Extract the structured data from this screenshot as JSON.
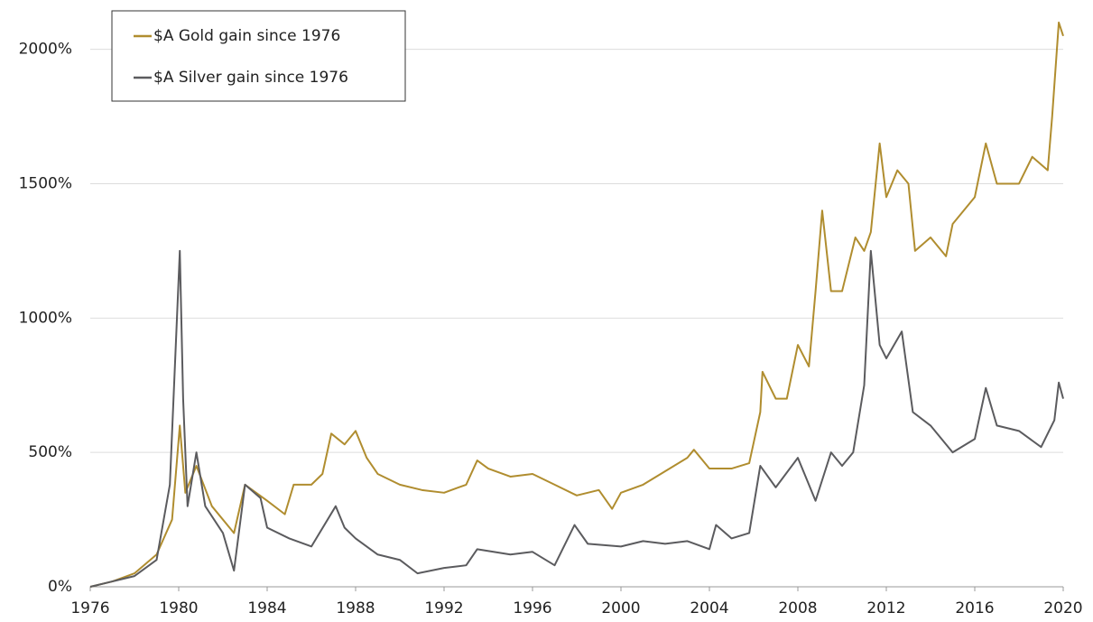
{
  "chart_data": {
    "type": "line",
    "xlim": [
      1976,
      2020
    ],
    "xticks": [
      1976,
      1980,
      1984,
      1988,
      1992,
      1996,
      2000,
      2004,
      2008,
      2012,
      2016,
      2020
    ],
    "ylim": [
      0,
      2150
    ],
    "yticks": [
      {
        "value": 0,
        "label": "0%"
      },
      {
        "value": 500,
        "label": "500%"
      },
      {
        "value": 1000,
        "label": "1000%"
      },
      {
        "value": 1500,
        "label": "1500%"
      },
      {
        "value": 2000,
        "label": "2000%"
      }
    ],
    "grid": true,
    "legend": "upper left",
    "series": [
      {
        "name": "$A Gold gain since 1976",
        "color": "#b08d2f",
        "x": [
          1976,
          1977,
          1978,
          1979,
          1979.7,
          1980.05,
          1980.3,
          1980.8,
          1981.5,
          1982.5,
          1983,
          1983.5,
          1984,
          1984.8,
          1985.2,
          1986,
          1986.5,
          1986.9,
          1987.5,
          1988,
          1988.5,
          1989,
          1990,
          1991,
          1992,
          1993,
          1993.5,
          1994,
          1995,
          1996,
          1997,
          1998,
          1999,
          1999.6,
          2000,
          2001,
          2002,
          2003,
          2003.3,
          2004,
          2005,
          2005.8,
          2006.3,
          2006.4,
          2007,
          2007.5,
          2008,
          2008.5,
          2008.8,
          2009.1,
          2009.5,
          2010,
          2010.6,
          2011,
          2011.3,
          2011.7,
          2012,
          2012.5,
          2013,
          2013.3,
          2014,
          2014.7,
          2015,
          2016,
          2016.5,
          2017,
          2018,
          2018.6,
          2019.3,
          2019.5,
          2019.8,
          2020
        ],
        "values": [
          0,
          20,
          50,
          120,
          250,
          600,
          350,
          450,
          300,
          200,
          380,
          350,
          320,
          270,
          380,
          380,
          420,
          570,
          530,
          580,
          480,
          420,
          380,
          360,
          350,
          380,
          470,
          440,
          410,
          420,
          380,
          340,
          360,
          290,
          350,
          380,
          430,
          480,
          510,
          440,
          440,
          460,
          650,
          800,
          700,
          700,
          900,
          820,
          1100,
          1400,
          1100,
          1100,
          1300,
          1250,
          1320,
          1650,
          1450,
          1550,
          1500,
          1250,
          1300,
          1230,
          1350,
          1450,
          1650,
          1500,
          1500,
          1600,
          1550,
          1750,
          2100,
          2050
        ]
      },
      {
        "name": "$A Silver gain since 1976",
        "color": "#5b5b5e",
        "x": [
          1976,
          1977,
          1978,
          1979,
          1979.6,
          1980.05,
          1980.2,
          1980.4,
          1980.8,
          1981.2,
          1982,
          1982.5,
          1983,
          1983.7,
          1984,
          1985,
          1986,
          1987.1,
          1987.5,
          1988,
          1989,
          1990,
          1990.8,
          1992,
          1993,
          1993.5,
          1995,
          1996,
          1997,
          1997.9,
          1998.5,
          2000,
          2001,
          2002,
          2003,
          2004,
          2004.3,
          2005,
          2005.8,
          2006.3,
          2007,
          2008,
          2008.8,
          2009.5,
          2010,
          2010.5,
          2011,
          2011.3,
          2011.7,
          2012,
          2012.7,
          2013.2,
          2014,
          2015,
          2016,
          2016.5,
          2017,
          2018,
          2019,
          2019.6,
          2019.8,
          2020
        ],
        "values": [
          0,
          20,
          40,
          100,
          380,
          1250,
          700,
          300,
          500,
          300,
          200,
          60,
          380,
          330,
          220,
          180,
          150,
          300,
          220,
          180,
          120,
          100,
          50,
          70,
          80,
          140,
          120,
          130,
          80,
          230,
          160,
          150,
          170,
          160,
          170,
          140,
          230,
          180,
          200,
          450,
          370,
          480,
          320,
          500,
          450,
          500,
          750,
          1250,
          900,
          850,
          950,
          650,
          600,
          500,
          550,
          740,
          600,
          580,
          520,
          620,
          760,
          700
        ]
      }
    ]
  }
}
